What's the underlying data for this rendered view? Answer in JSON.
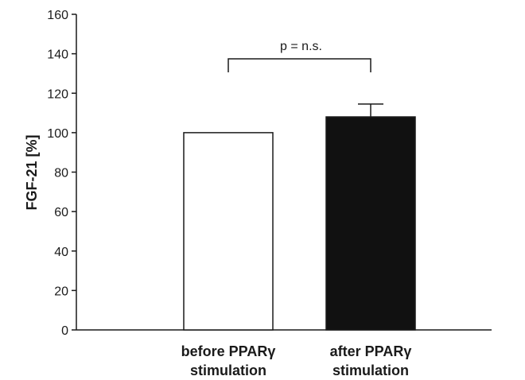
{
  "chart_data": {
    "type": "bar",
    "ylabel": "FGF-21 [%]",
    "ylim": [
      0,
      160
    ],
    "yticks": [
      0,
      20,
      40,
      60,
      80,
      100,
      120,
      140,
      160
    ],
    "categories": [
      [
        "before PPARγ",
        "stimulation"
      ],
      [
        "after PPARγ",
        "stimulation"
      ]
    ],
    "values": [
      100,
      108
    ],
    "error_upper": [
      0,
      6.5
    ],
    "bar_colors": [
      "#ffffff",
      "#111111"
    ],
    "annotation": "p = n.s.",
    "grid": false
  }
}
